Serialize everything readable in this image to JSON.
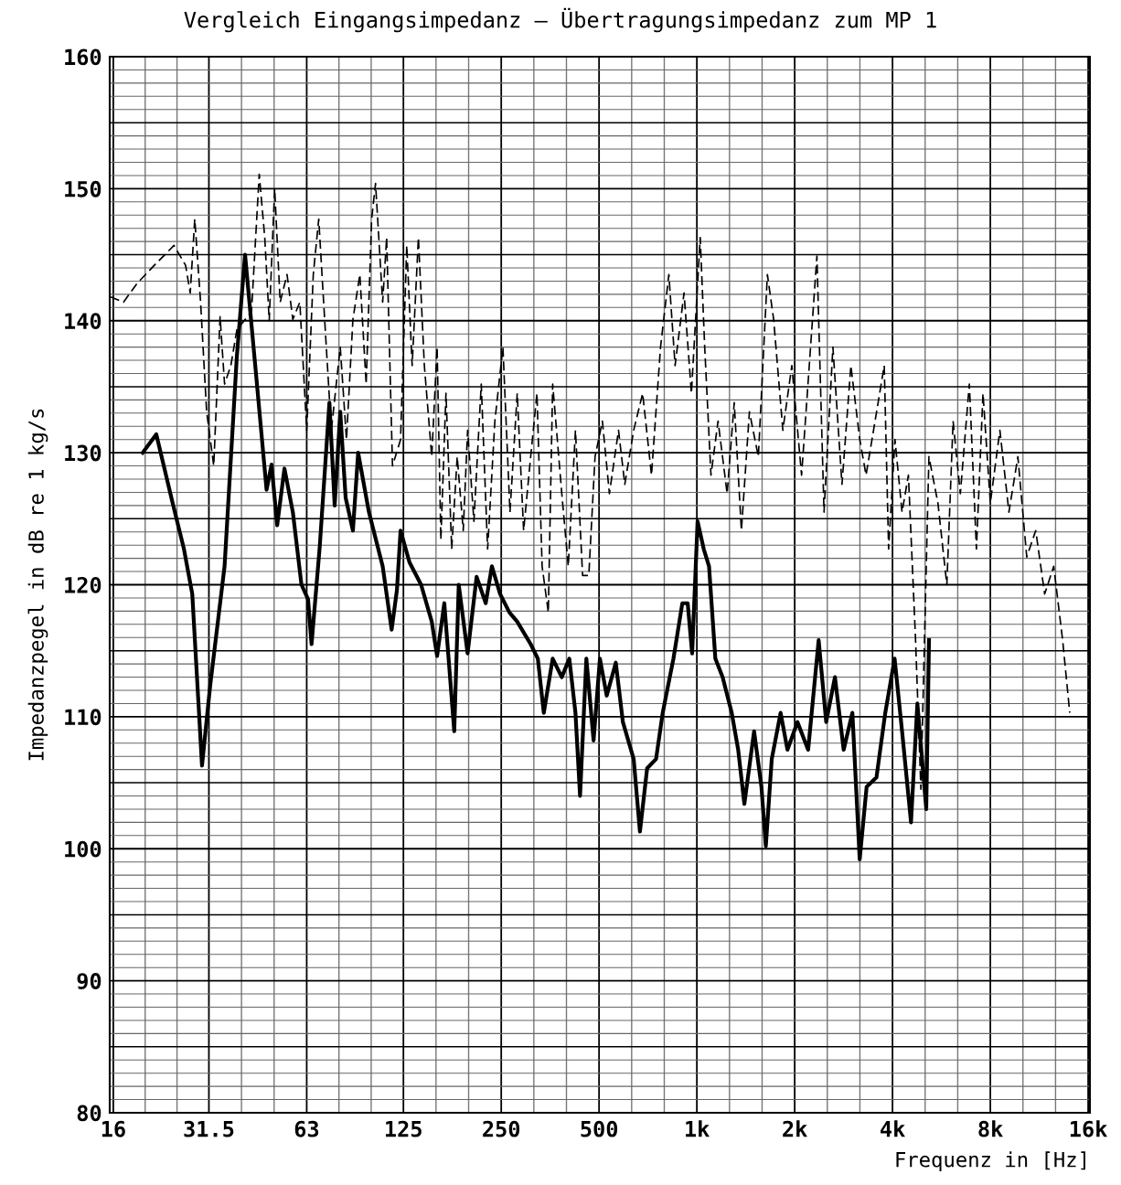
{
  "chart_data": {
    "type": "line",
    "title": "Vergleich Eingangsimpedanz – Übertragungsimpedanz zum MP 1",
    "xlabel": "Frequenz in [Hz]",
    "ylabel": "Impedanzpegel in dB re 1 kg/s",
    "log": "x",
    "grid": true,
    "marker": "none",
    "xlim": [
      15.6,
      16200
    ],
    "xticks": [
      16,
      31.5,
      63,
      125,
      250,
      500,
      {
        "value": 1000,
        "label": "1k"
      },
      {
        "value": 2000,
        "label": "2k"
      },
      {
        "value": 4000,
        "label": "4k"
      },
      {
        "value": 8000,
        "label": "8k"
      },
      {
        "value": 16000,
        "label": "16k"
      }
    ],
    "ylim": [
      80,
      160
    ],
    "yticks": [
      80,
      90,
      100,
      110,
      120,
      130,
      140,
      150,
      160
    ],
    "series": [
      {
        "color": "#000000",
        "line_style": "dashed",
        "x": [
          15.7,
          17.2,
          18.9,
          21.4,
          24.6,
          26.7,
          27.6,
          28.5,
          29.7,
          31,
          32.6,
          34.1,
          35.2,
          36.8,
          38.4,
          42.6,
          45,
          46.8,
          48.3,
          50.2,
          52.2,
          54.8,
          57.1,
          60,
          63,
          66,
          68.6,
          71.3,
          75,
          79.9,
          83.5,
          87.4,
          91.8,
          96,
          99.8,
          102.6,
          107.9,
          111,
          115.7,
          122.5,
          128,
          133,
          139,
          145,
          152.8,
          158.7,
          163,
          169,
          176,
          183,
          191,
          197,
          206,
          217,
          227,
          239,
          253,
          266,
          280,
          293,
          308,
          322,
          334,
          349,
          360,
          384,
          402,
          423,
          445,
          465,
          486,
          512,
          538,
          574,
          600,
          639,
          681,
          725,
          773,
          820,
          857,
          913,
          962,
          1024,
          1057,
          1105,
          1162,
          1239,
          1303,
          1371,
          1451,
          1546,
          1648,
          1723,
          1839,
          1960,
          2100,
          2238,
          2341,
          2462,
          2622,
          2796,
          2978,
          3172,
          3316,
          3535,
          3772,
          3891,
          4070,
          4280,
          4477,
          4710,
          4891,
          5177,
          5517,
          5878,
          6144,
          6468,
          6894,
          7250,
          7594,
          8000,
          8560,
          9126,
          9724,
          10355,
          11035,
          11756,
          12534,
          13353,
          14041
        ],
        "values": [
          141.8,
          141.4,
          142.8,
          144.2,
          145.7,
          144.2,
          142.1,
          147.7,
          141.4,
          133.1,
          129,
          140.3,
          135.2,
          136.6,
          139.3,
          140.7,
          151.1,
          146.3,
          140,
          150,
          141.4,
          143.5,
          140.1,
          141.4,
          131.7,
          143.5,
          147.7,
          140.7,
          131.7,
          138,
          131,
          140.1,
          143.5,
          135.2,
          147.7,
          150.4,
          141.4,
          146.3,
          129,
          131,
          145.7,
          136.6,
          146.3,
          136.6,
          129.7,
          138,
          123.4,
          134.5,
          122.7,
          129.7,
          124.1,
          131.7,
          124.8,
          135.2,
          122.7,
          132.4,
          138,
          125.5,
          134.5,
          124.1,
          129.7,
          134.5,
          121.4,
          117.9,
          135.2,
          126.9,
          121.4,
          131.7,
          120.7,
          120.7,
          129.7,
          132.4,
          126.9,
          131.7,
          127.6,
          131.7,
          134.5,
          128.3,
          138,
          143.5,
          136.6,
          142.1,
          134.5,
          146.3,
          138,
          128.3,
          132.4,
          126.9,
          133.8,
          124.1,
          133.1,
          129.7,
          143.5,
          140.1,
          131.7,
          136.6,
          128.3,
          138,
          144.9,
          125.5,
          138,
          127.6,
          136.6,
          131,
          128.3,
          132.4,
          136.6,
          122.7,
          131,
          125.5,
          128.3,
          115.8,
          104.5,
          129.7,
          126.2,
          120,
          132.4,
          126.9,
          135.2,
          122.7,
          134.5,
          126.2,
          131.7,
          125.5,
          129.7,
          122.1,
          124.1,
          119.3,
          121.4,
          115.8,
          110.3
        ]
      },
      {
        "color": "#000000",
        "line_style": "solid",
        "x": [
          19.7,
          21.7,
          24.3,
          26.4,
          28,
          30,
          31.8,
          35.2,
          38.4,
          40.7,
          43.9,
          47.4,
          49.1,
          51.1,
          53.8,
          57.1,
          60.7,
          63.6,
          65.2,
          69.1,
          74,
          76.8,
          79.9,
          83,
          87.4,
          90.7,
          97.9,
          107.9,
          115,
          119.4,
          122.5,
          130.5,
          141.7,
          152.8,
          158.7,
          167,
          179.2,
          185,
          197,
          210,
          224,
          234,
          248,
          265,
          280,
          308,
          324,
          338,
          360,
          384,
          405,
          423,
          437,
          457,
          481,
          503,
          528,
          563,
          592,
          639,
          668,
          703,
          749,
          785,
          847,
          902,
          937,
          967,
          1005,
          1050,
          1090,
          1140,
          1200,
          1280,
          1340,
          1400,
          1500,
          1580,
          1630,
          1700,
          1810,
          1900,
          2040,
          2200,
          2370,
          2500,
          2660,
          2830,
          3010,
          3170,
          3330,
          3570,
          3800,
          4060,
          4280,
          4560,
          4770,
          5080,
          5180
        ],
        "values": [
          130,
          131.4,
          126.3,
          122.7,
          119.3,
          106.3,
          112.4,
          121.4,
          137.3,
          145,
          136.2,
          127.2,
          129.1,
          124.5,
          128.8,
          125.5,
          120,
          118.9,
          115.5,
          122.9,
          133.8,
          126,
          133.1,
          126.6,
          124.1,
          130,
          125.5,
          121.4,
          116.6,
          119.6,
          124.1,
          121.7,
          120,
          117.2,
          114.6,
          118.6,
          108.9,
          120,
          114.8,
          120.6,
          118.6,
          121.4,
          119.3,
          117.9,
          117.2,
          115.5,
          114.4,
          110.3,
          114.4,
          113,
          114.4,
          110.3,
          104,
          114.4,
          108.2,
          114.4,
          111.6,
          114.1,
          109.6,
          106.8,
          101.3,
          106.1,
          106.8,
          110.3,
          114.4,
          118.6,
          118.6,
          114.8,
          124.8,
          122.7,
          121.4,
          114.4,
          113,
          110.3,
          107.5,
          103.4,
          108.9,
          104.7,
          100.2,
          106.8,
          110.3,
          107.5,
          109.6,
          107.5,
          115.8,
          109.6,
          113,
          107.5,
          110.3,
          99.2,
          104.7,
          105.4,
          110.3,
          114.4,
          108.9,
          102,
          111,
          103,
          115.8
        ]
      }
    ]
  }
}
